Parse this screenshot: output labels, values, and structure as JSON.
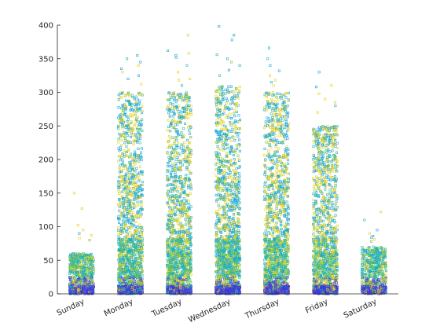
{
  "chart_data": {
    "type": "scatter",
    "title": "",
    "xlabel": "",
    "ylabel": "",
    "categories": [
      "Sunday",
      "Monday",
      "Tuesday",
      "Wednesday",
      "Thursday",
      "Friday",
      "Saturday"
    ],
    "x_positions": [
      1,
      2,
      3,
      4,
      5,
      6,
      7
    ],
    "xlim": [
      0.5,
      7.5
    ],
    "ylim": [
      0,
      400
    ],
    "yticks": [
      0,
      50,
      100,
      150,
      200,
      250,
      300,
      350,
      400
    ],
    "ytick_labels": [
      "0",
      "50",
      "100",
      "150",
      "200",
      "250",
      "300",
      "350",
      "400"
    ],
    "grid": false,
    "legend": "none",
    "marker": "square (hollow)",
    "jitter_width": 0.25,
    "colors": {
      "low": "#3e3be0",
      "yellow": "#e8d01e",
      "teal": "#22b8a8",
      "cyan": "#1aa5d9",
      "green": "#7cc43a",
      "axis": "#262626"
    },
    "series": [
      {
        "category": "Sunday",
        "count": 700,
        "approx_max": 150,
        "bulk_upper": 60,
        "outliers": [
          150,
          127,
          102,
          95,
          90,
          87,
          83,
          80
        ]
      },
      {
        "category": "Monday",
        "count": 1700,
        "approx_max": 355,
        "bulk_upper": 300,
        "outliers": [
          355,
          350,
          345,
          340,
          335,
          330,
          325,
          320,
          312
        ]
      },
      {
        "category": "Tuesday",
        "count": 1700,
        "approx_max": 385,
        "bulk_upper": 300,
        "outliers": [
          385,
          362,
          358,
          355,
          352,
          340,
          330,
          320,
          318,
          310
        ]
      },
      {
        "category": "Wednesday",
        "count": 1800,
        "approx_max": 398,
        "bulk_upper": 310,
        "outliers": [
          398,
          385,
          378,
          356,
          350,
          345,
          340,
          333,
          325
        ]
      },
      {
        "category": "Thursday",
        "count": 1750,
        "approx_max": 366,
        "bulk_upper": 300,
        "outliers": [
          366,
          350,
          340,
          332,
          325,
          318,
          315,
          310
        ]
      },
      {
        "category": "Friday",
        "count": 1500,
        "approx_max": 330,
        "bulk_upper": 250,
        "outliers": [
          330,
          310,
          308,
          298,
          290,
          285,
          280,
          270
        ]
      },
      {
        "category": "Saturday",
        "count": 700,
        "approx_max": 122,
        "bulk_upper": 70,
        "outliers": [
          122,
          110,
          95,
          90,
          86,
          84,
          81,
          78
        ]
      }
    ]
  }
}
